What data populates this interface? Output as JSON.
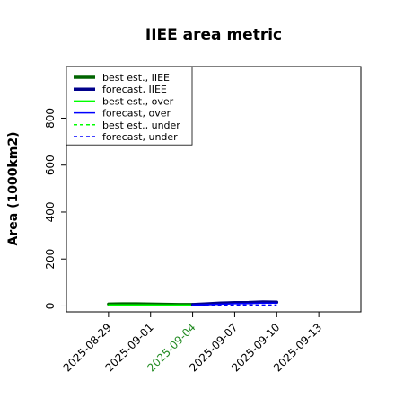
{
  "chart_data": {
    "type": "line",
    "title": "IIEE area metric",
    "xlabel": "",
    "ylabel": "Area (1000km2)",
    "ylim": [
      -25,
      1020
    ],
    "xlim": [
      "2025-08-26",
      "2025-09-16"
    ],
    "x_ticks": [
      "2025-08-29",
      "2025-09-01",
      "2025-09-04",
      "2025-09-07",
      "2025-09-10",
      "2025-09-13"
    ],
    "x_tick_colors": [
      "#000000",
      "#000000",
      "#228B22",
      "#000000",
      "#000000",
      "#000000"
    ],
    "y_ticks": [
      0,
      200,
      400,
      600,
      800
    ],
    "grid": false,
    "legend_position": "top-left",
    "legend": [
      {
        "label": "best est., IIEE",
        "color": "#006400",
        "style": "solid",
        "weight": "thick"
      },
      {
        "label": "forecast, IIEE",
        "color": "#00008B",
        "style": "solid",
        "weight": "thick"
      },
      {
        "label": "best est., over",
        "color": "#00FF00",
        "style": "solid",
        "weight": "thin"
      },
      {
        "label": "forecast, over",
        "color": "#0000FF",
        "style": "solid",
        "weight": "thin"
      },
      {
        "label": "best est., under",
        "color": "#00FF00",
        "style": "dashed",
        "weight": "thin"
      },
      {
        "label": "forecast, under",
        "color": "#0000FF",
        "style": "dashed",
        "weight": "thin"
      }
    ],
    "series": [
      {
        "name": "best est., IIEE",
        "color": "#006400",
        "style": "solid",
        "weight": "thick",
        "x": [
          "2025-08-29",
          "2025-08-30",
          "2025-08-31",
          "2025-09-01",
          "2025-09-02",
          "2025-09-03",
          "2025-09-04"
        ],
        "y": [
          8,
          9,
          9,
          8,
          7,
          6,
          6
        ]
      },
      {
        "name": "best est., over",
        "color": "#00FF00",
        "style": "solid",
        "weight": "thin",
        "x": [
          "2025-08-29",
          "2025-08-30",
          "2025-08-31",
          "2025-09-01",
          "2025-09-02",
          "2025-09-03",
          "2025-09-04"
        ],
        "y": [
          5,
          5,
          5,
          5,
          4,
          4,
          4
        ]
      },
      {
        "name": "best est., under",
        "color": "#00FF00",
        "style": "dashed",
        "weight": "thin",
        "x": [
          "2025-08-29",
          "2025-08-30",
          "2025-08-31",
          "2025-09-01",
          "2025-09-02",
          "2025-09-03",
          "2025-09-04"
        ],
        "y": [
          3,
          3,
          3,
          3,
          3,
          2,
          2
        ]
      },
      {
        "name": "forecast, IIEE",
        "color": "#00008B",
        "style": "solid",
        "weight": "thick",
        "x": [
          "2025-09-04",
          "2025-09-05",
          "2025-09-06",
          "2025-09-07",
          "2025-09-08",
          "2025-09-09",
          "2025-09-10"
        ],
        "y": [
          6,
          9,
          12,
          14,
          15,
          17,
          16
        ]
      },
      {
        "name": "forecast, over",
        "color": "#0000FF",
        "style": "solid",
        "weight": "thin",
        "x": [
          "2025-09-04",
          "2025-09-05",
          "2025-09-06",
          "2025-09-07",
          "2025-09-08",
          "2025-09-09",
          "2025-09-10"
        ],
        "y": [
          4,
          6,
          8,
          10,
          11,
          12,
          12
        ]
      },
      {
        "name": "forecast, under",
        "color": "#0000FF",
        "style": "dashed",
        "weight": "thin",
        "x": [
          "2025-09-04",
          "2025-09-05",
          "2025-09-06",
          "2025-09-07",
          "2025-09-08",
          "2025-09-09",
          "2025-09-10"
        ],
        "y": [
          2,
          3,
          3,
          4,
          4,
          4,
          4
        ]
      }
    ]
  }
}
